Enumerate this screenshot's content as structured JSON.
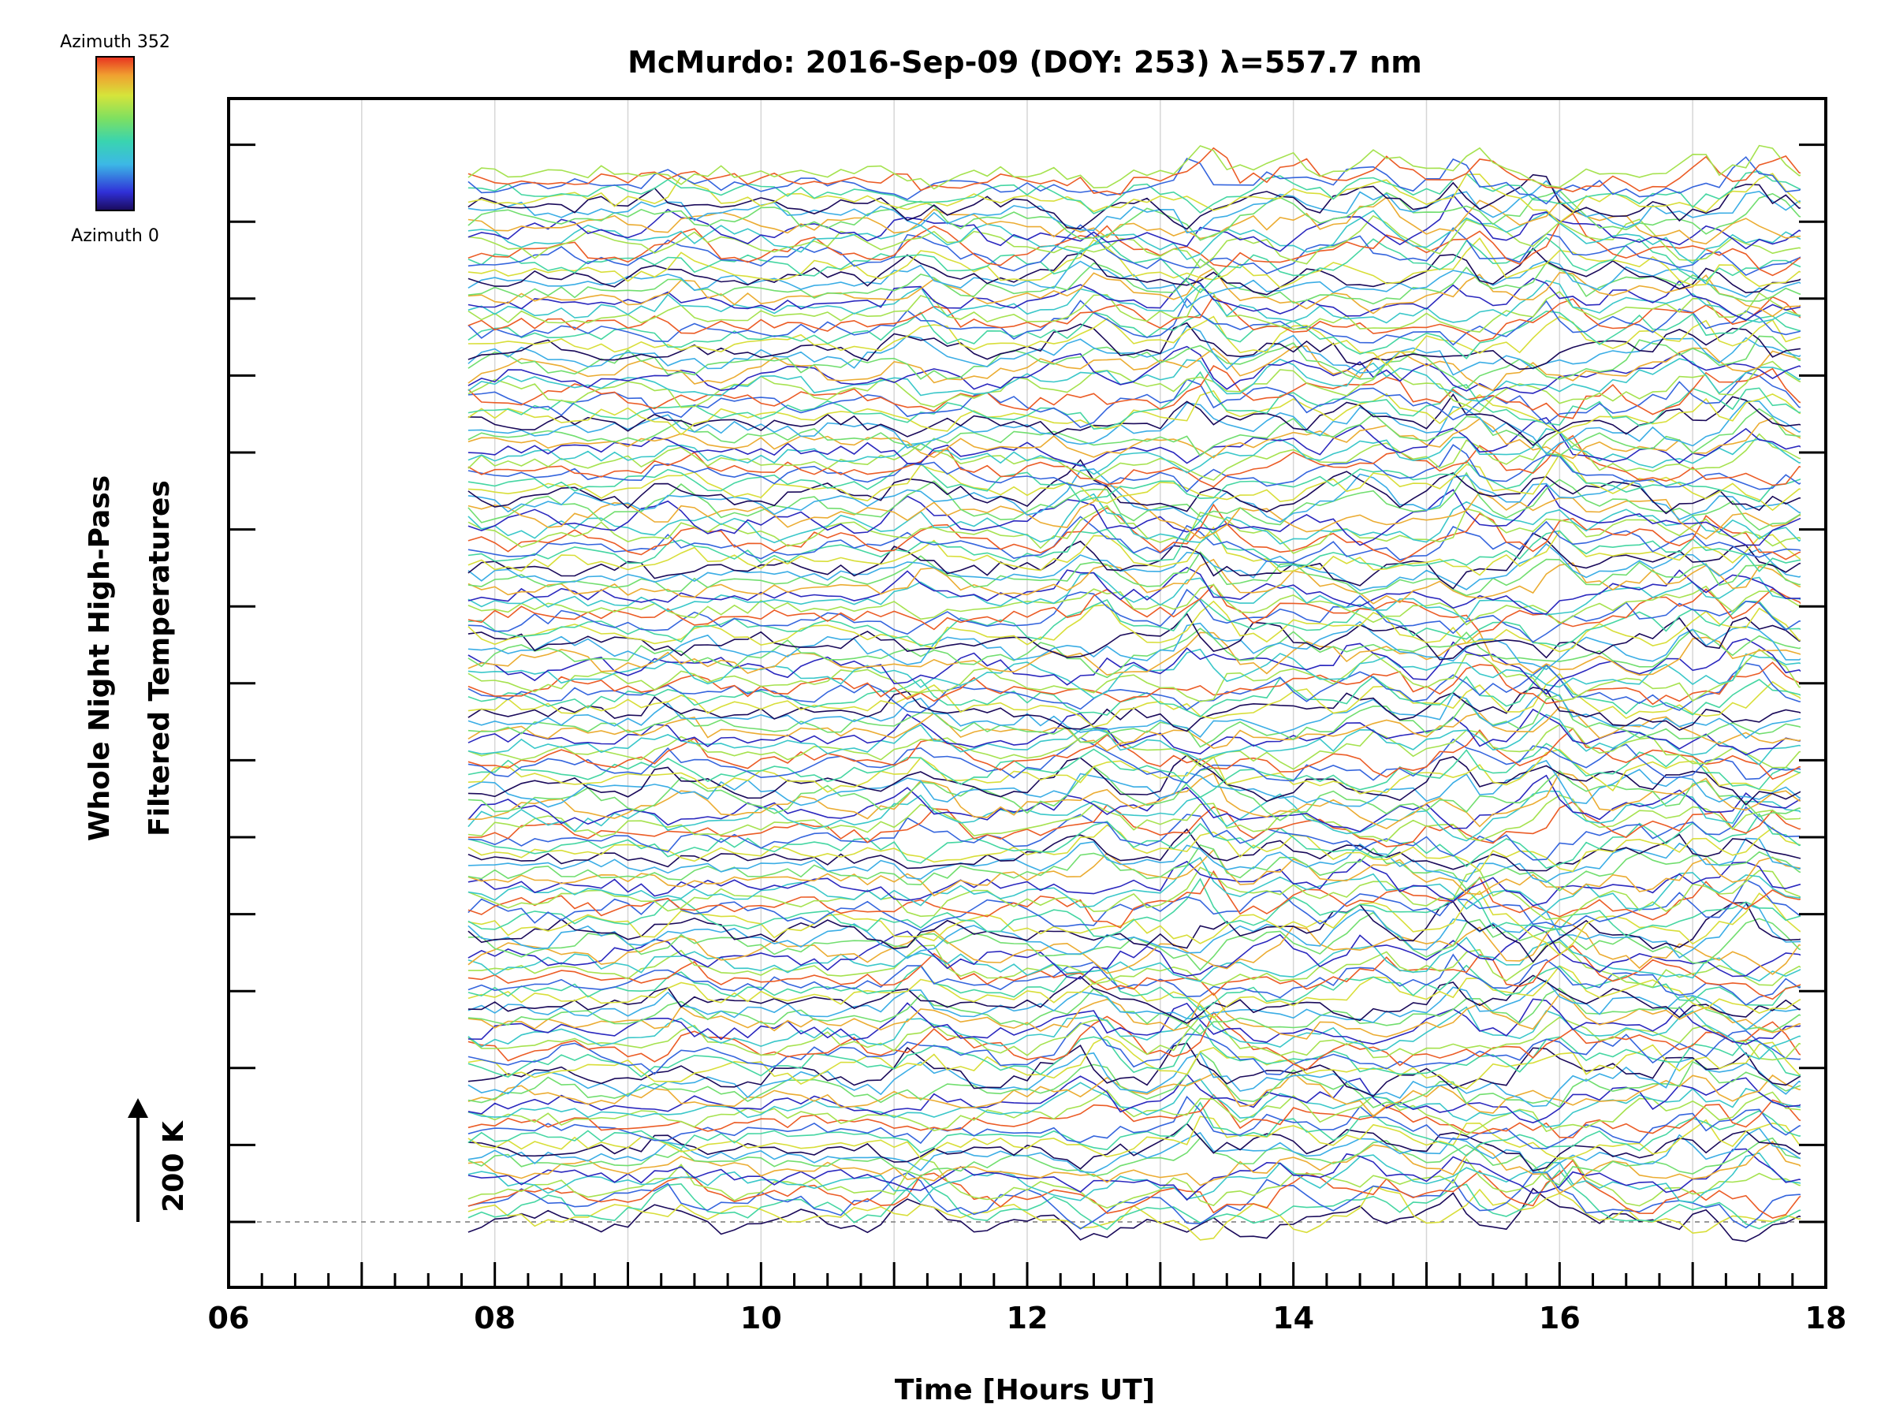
{
  "chart_data": {
    "type": "line",
    "title": "McMurdo: 2016-Sep-09 (DOY: 253) λ=557.7 nm",
    "xlabel": "Time [Hours UT]",
    "ylabel_lines": [
      "Whole Night High-Pass",
      "Filtered Temperatures"
    ],
    "scale_label": "200 K",
    "xlim": [
      6,
      18
    ],
    "x_tick_labels": [
      "06",
      "08",
      "10",
      "12",
      "14",
      "16",
      "18"
    ],
    "x_tick_values": [
      6,
      8,
      10,
      12,
      14,
      16,
      18
    ],
    "x_minor_step": 0.25,
    "x_start": 7.8,
    "x_end": 18,
    "x_step": 0.1,
    "series_count": 160,
    "azimuth_range": [
      0,
      352
    ],
    "series_offset_K": 100,
    "legend": {
      "top_label": "Azimuth 352",
      "bottom_label": "Azimuth 0",
      "colormap": "rainbow",
      "placement": "top-left"
    },
    "grid": true,
    "baseline_dashed": true
  },
  "colors": {
    "axis": "#000000",
    "grid": "#d6d6d6",
    "baseline": "#999999",
    "background": "#ffffff"
  }
}
